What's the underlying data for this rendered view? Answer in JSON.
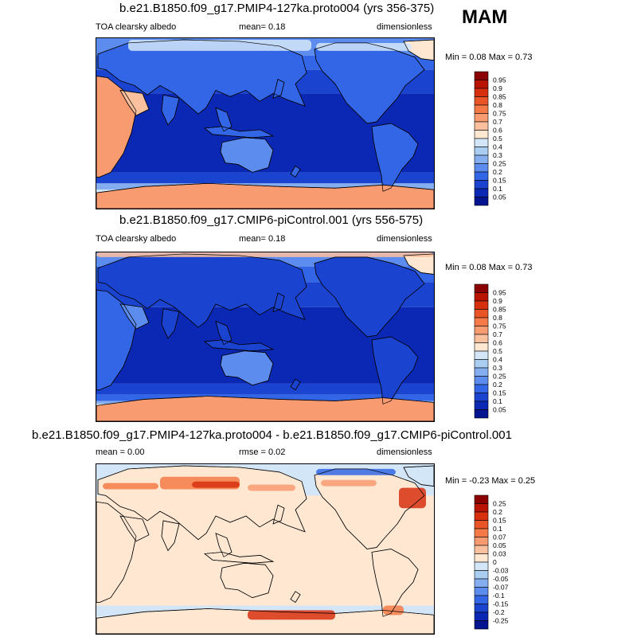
{
  "season": "MAM",
  "panels": [
    {
      "title": "b.e21.B1850.f09_g17.PMIP4-127ka.proto004 (yrs 356-375)",
      "left_text": "TOA clearsky albedo",
      "center_text": "mean=   0.18",
      "right_text": "dimensionless",
      "minmax": "Min =   0.08 Max =    0.73",
      "colorbar_labels": [
        "0.95",
        "0.9",
        "0.85",
        "0.8",
        "0.75",
        "0.7",
        "0.6",
        "0.5",
        "0.4",
        "0.3",
        "0.25",
        "0.2",
        "0.15",
        "0.1",
        "0.05"
      ],
      "colorbar_colors": [
        "#8b0000",
        "#b81400",
        "#d7300f",
        "#ea5528",
        "#f57a48",
        "#f99b71",
        "#fbc09d",
        "#ffe7d2",
        "#d3e6f8",
        "#aacdf2",
        "#84aef0",
        "#5c8cee",
        "#3366e6",
        "#1a44d0",
        "#0a28b4",
        "#041490"
      ],
      "map_kind": "albedo_127ka"
    },
    {
      "title": "b.e21.B1850.f09_g17.CMIP6-piControl.001 (yrs 556-575)",
      "left_text": "TOA clearsky albedo",
      "center_text": "mean=   0.18",
      "right_text": "dimensionless",
      "minmax": "Min =   0.08 Max =    0.73",
      "colorbar_labels": [
        "0.95",
        "0.9",
        "0.85",
        "0.8",
        "0.75",
        "0.7",
        "0.6",
        "0.5",
        "0.4",
        "0.3",
        "0.25",
        "0.2",
        "0.15",
        "0.1",
        "0.05"
      ],
      "colorbar_colors": [
        "#8b0000",
        "#b81400",
        "#d7300f",
        "#ea5528",
        "#f57a48",
        "#f99b71",
        "#fbc09d",
        "#ffe7d2",
        "#d3e6f8",
        "#aacdf2",
        "#84aef0",
        "#5c8cee",
        "#3366e6",
        "#1a44d0",
        "#0a28b4",
        "#041490"
      ],
      "map_kind": "albedo_pi"
    },
    {
      "title": "b.e21.B1850.f09_g17.PMIP4-127ka.proto004 - b.e21.B1850.f09_g17.CMIP6-piControl.001",
      "left_text": "mean =   0.00",
      "center_text": "rmse =   0.02",
      "right_text": "dimensionless",
      "minmax": "Min =  -0.23 Max =    0.25",
      "colorbar_labels": [
        "0.25",
        "0.2",
        "0.15",
        "0.1",
        "0.07",
        "0.05",
        "0.03",
        "0",
        "-0.03",
        "-0.05",
        "-0.07",
        "-0.1",
        "-0.15",
        "-0.2",
        "-0.25"
      ],
      "colorbar_colors": [
        "#8b0000",
        "#b81400",
        "#d7300f",
        "#ea5528",
        "#f57a48",
        "#f99b71",
        "#fbc09d",
        "#ffe7d2",
        "#d3e6f8",
        "#aacdf2",
        "#84aef0",
        "#5c8cee",
        "#3366e6",
        "#1a44d0",
        "#0a28b4",
        "#041490"
      ],
      "map_kind": "difference"
    }
  ]
}
